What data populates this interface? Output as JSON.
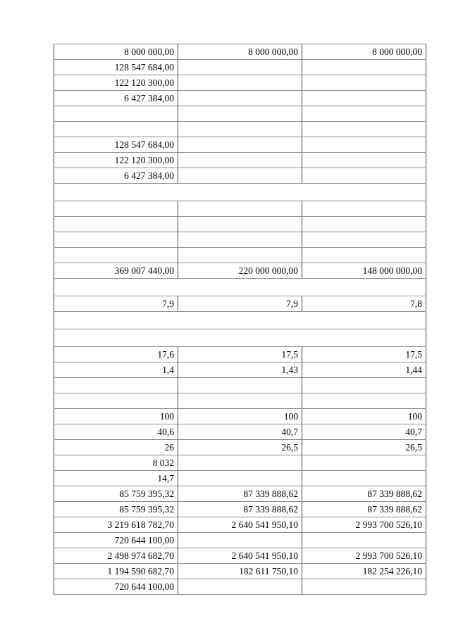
{
  "page": {
    "background_color": "#ffffff",
    "text_color": "#000000"
  },
  "colors": {
    "grid_horizontal": "#8c8c8c",
    "grid_vertical": "#3f3f3f",
    "outer_border": "#3f3f3f"
  },
  "table": {
    "columns": 3,
    "number_format": "space thousands separator, comma decimal separator",
    "rows": [
      {
        "merged": false,
        "cells": [
          "8 000 000,00",
          "8 000 000,00",
          "8 000 000,00"
        ]
      },
      {
        "merged": false,
        "cells": [
          "128 547 684,00",
          "",
          ""
        ]
      },
      {
        "merged": false,
        "cells": [
          "122 120 300,00",
          "",
          ""
        ]
      },
      {
        "merged": false,
        "cells": [
          "6 427 384,00",
          "",
          ""
        ]
      },
      {
        "merged": false,
        "cells": [
          "",
          "",
          ""
        ]
      },
      {
        "merged": false,
        "cells": [
          "",
          "",
          ""
        ]
      },
      {
        "merged": false,
        "cells": [
          "128 547 684,00",
          "",
          ""
        ]
      },
      {
        "merged": false,
        "cells": [
          "122 120 300,00",
          "",
          ""
        ]
      },
      {
        "merged": false,
        "cells": [
          "6 427 384,00",
          "",
          ""
        ]
      },
      {
        "merged": true,
        "cells": [
          ""
        ]
      },
      {
        "merged": false,
        "cells": [
          "",
          "",
          ""
        ]
      },
      {
        "merged": false,
        "cells": [
          "",
          "",
          ""
        ]
      },
      {
        "merged": false,
        "cells": [
          "",
          "",
          ""
        ]
      },
      {
        "merged": false,
        "cells": [
          "",
          "",
          ""
        ]
      },
      {
        "merged": false,
        "cells": [
          "369 007 440,00",
          "220 000 000,00",
          "148 000 000,00"
        ]
      },
      {
        "merged": true,
        "cells": [
          ""
        ]
      },
      {
        "merged": false,
        "cells": [
          "7,9",
          "7,9",
          "7,8"
        ]
      },
      {
        "merged": true,
        "cells": [
          ""
        ]
      },
      {
        "merged": true,
        "cells": [
          ""
        ]
      },
      {
        "merged": false,
        "cells": [
          "17,6",
          "17,5",
          "17,5"
        ]
      },
      {
        "merged": false,
        "cells": [
          "1,4",
          "1,43",
          "1,44"
        ]
      },
      {
        "merged": false,
        "cells": [
          "",
          "",
          ""
        ]
      },
      {
        "merged": false,
        "cells": [
          "",
          "",
          ""
        ]
      },
      {
        "merged": false,
        "cells": [
          "100",
          "100",
          "100"
        ]
      },
      {
        "merged": false,
        "cells": [
          "40,6",
          "40,7",
          "40,7"
        ]
      },
      {
        "merged": false,
        "cells": [
          "26",
          "26,5",
          "26,5"
        ]
      },
      {
        "merged": false,
        "cells": [
          "8 032",
          "",
          ""
        ]
      },
      {
        "merged": false,
        "cells": [
          "14,7",
          "",
          ""
        ]
      },
      {
        "merged": false,
        "cells": [
          "85 759 395,32",
          "87 339 888,62",
          "87 339 888,62"
        ]
      },
      {
        "merged": false,
        "cells": [
          "85 759 395,32",
          "87 339 888,62",
          "87 339 888,62"
        ]
      },
      {
        "merged": false,
        "cells": [
          "3 219 618 782,70",
          "2 640 541 950,10",
          "2 993 700 526,10"
        ]
      },
      {
        "merged": false,
        "cells": [
          "720 644 100,00",
          "",
          ""
        ]
      },
      {
        "merged": false,
        "cells": [
          "2 498 974 682,70",
          "2 640 541 950,10",
          "2 993 700 526,10"
        ]
      },
      {
        "merged": false,
        "cells": [
          "1 194 590 682,70",
          "182 611 750,10",
          "182 254 226,10"
        ]
      },
      {
        "merged": false,
        "cells": [
          "720 644 100,00",
          "",
          ""
        ]
      }
    ]
  }
}
